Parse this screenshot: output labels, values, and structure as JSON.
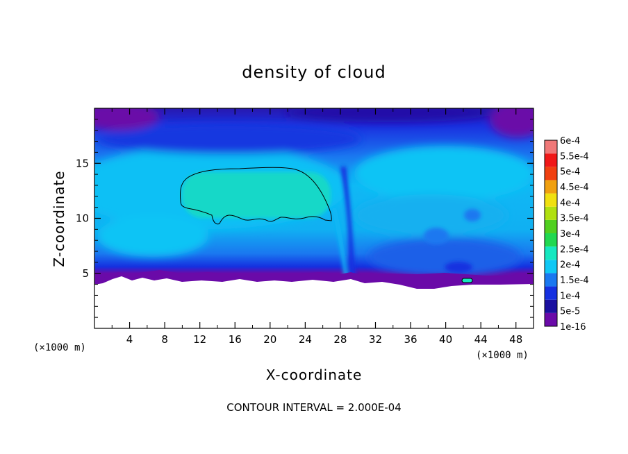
{
  "chart_data": {
    "type": "heatmap",
    "title": "density of cloud",
    "xlabel": "X-coordinate",
    "ylabel": "Z-coordinate",
    "x_unit": "(×1000 m)",
    "xlim": [
      0,
      50
    ],
    "ylim": [
      0,
      20
    ],
    "x_ticks": [
      4,
      8,
      12,
      16,
      20,
      24,
      28,
      32,
      36,
      40,
      44,
      48
    ],
    "y_ticks": [
      5,
      10,
      15
    ],
    "colorbar": {
      "labels": [
        "1e-16",
        "5e-5",
        "1e-4",
        "1.5e-4",
        "2e-4",
        "2.5e-4",
        "3e-4",
        "3.5e-4",
        "4e-4",
        "4.5e-4",
        "5e-4",
        "5.5e-4",
        "6e-4"
      ],
      "colors": [
        "#6a0aa8",
        "#1a10a0",
        "#1530e0",
        "#1a78f0",
        "#10c8f5",
        "#15e8c0",
        "#20d850",
        "#50d020",
        "#b0e010",
        "#f0e010",
        "#f0a010",
        "#f04010",
        "#f01818",
        "#f07878"
      ]
    },
    "contour_interval": "CONTOUR INTERVAL = 2.000E-04",
    "contour_region": {
      "x_range": [
        9.8,
        27.2
      ],
      "z_range": [
        9.4,
        14.6
      ],
      "level": 0.0002
    }
  }
}
